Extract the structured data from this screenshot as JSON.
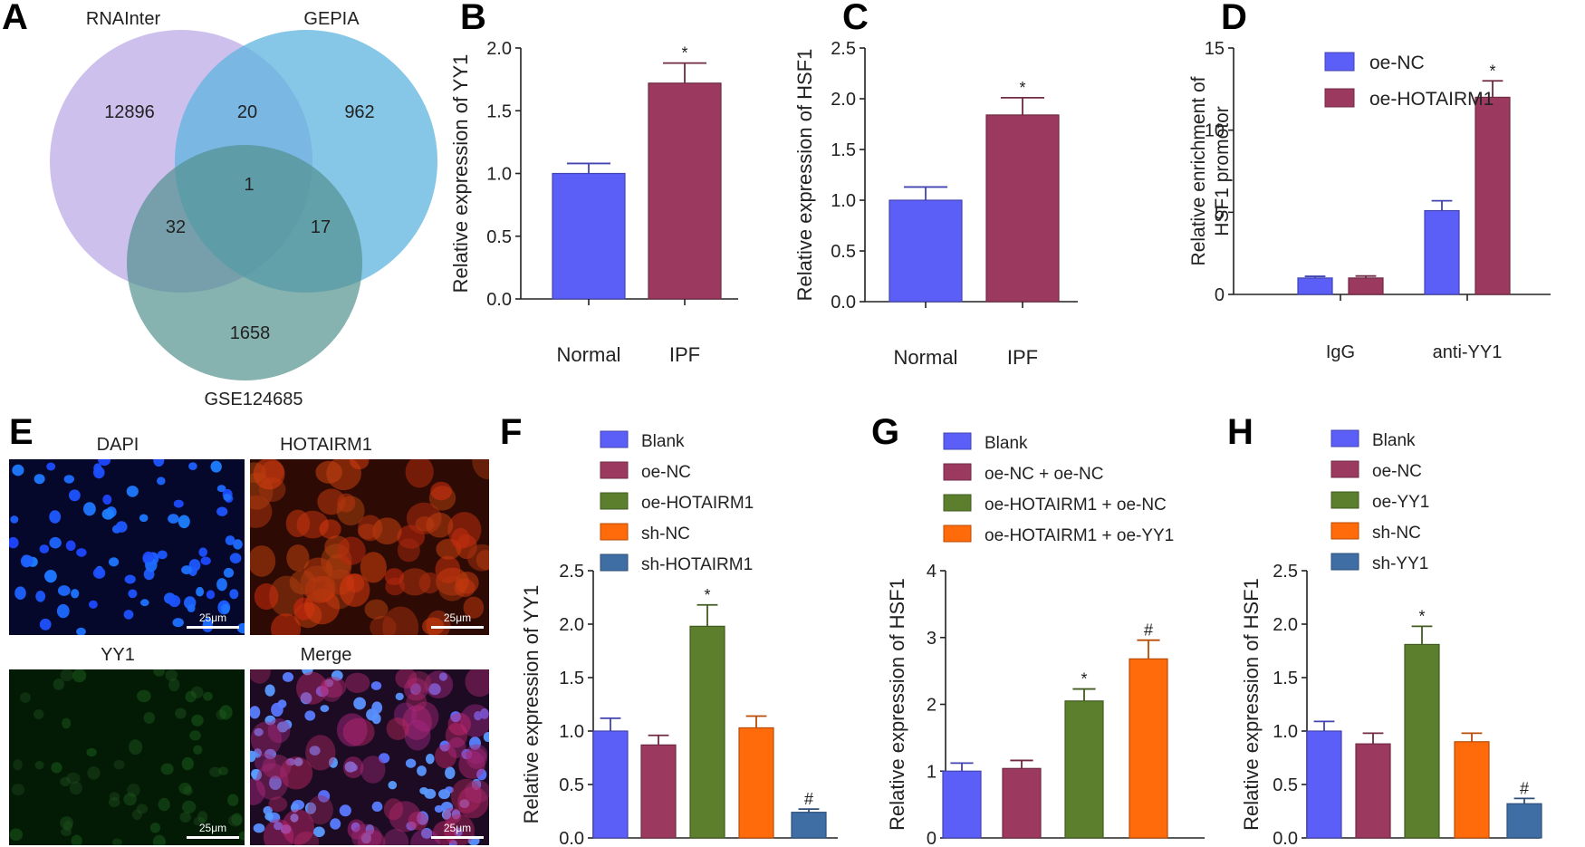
{
  "panel_letters": {
    "A": "A",
    "B": "B",
    "C": "C",
    "D": "D",
    "E": "E",
    "F": "F",
    "G": "G",
    "H": "H"
  },
  "venn": {
    "sets": [
      {
        "name": "RNAInter",
        "color": "#b9a5e6",
        "label_color": "#a48fe0"
      },
      {
        "name": "GEPIA",
        "color": "#5db4df",
        "label_color": "#3fa5d8"
      },
      {
        "name": "GSE124685",
        "color": "#52918f",
        "label_color": "#2f7a78"
      }
    ],
    "regions": {
      "rnainter_only": "12896",
      "gepia_only": "962",
      "gse_only": "1658",
      "rnainter_gepia": "20",
      "rnainter_gse": "32",
      "gepia_gse": "17",
      "all": "1"
    }
  },
  "colors": {
    "blue": "#5b5ef7",
    "maroon": "#9b3a5e",
    "green": "#5b7f2c",
    "orange": "#ff6a0a",
    "steel": "#3f6ea5"
  },
  "micrograph": {
    "titles": {
      "dapi": "DAPI",
      "hotairm1": "HOTAIRM1",
      "yy1": "YY1",
      "merge": "Merge"
    },
    "scale": "25μm"
  },
  "chart_data": [
    {
      "id": "B",
      "type": "bar",
      "ylabel": "Relative expression of YY1",
      "categories": [
        "Normal",
        "IPF"
      ],
      "values": [
        1.0,
        1.72
      ],
      "errors": [
        0.08,
        0.16
      ],
      "marks": [
        "",
        "*"
      ],
      "colors": [
        "blue",
        "maroon"
      ],
      "ylim": [
        0,
        2.0
      ],
      "ticks": [
        "0.0",
        "0.5",
        "1.0",
        "1.5",
        "2.0"
      ],
      "tick_values": [
        0,
        0.5,
        1,
        1.5,
        2
      ]
    },
    {
      "id": "C",
      "type": "bar",
      "ylabel": "Relative expression of HSF1",
      "categories": [
        "Normal",
        "IPF"
      ],
      "values": [
        1.0,
        1.84
      ],
      "errors": [
        0.13,
        0.17
      ],
      "marks": [
        "",
        "*"
      ],
      "colors": [
        "blue",
        "maroon"
      ],
      "ylim": [
        0,
        2.5
      ],
      "ticks": [
        "0.0",
        "0.5",
        "1.0",
        "1.5",
        "2.0",
        "2.5"
      ],
      "tick_values": [
        0,
        0.5,
        1,
        1.5,
        2,
        2.5
      ]
    },
    {
      "id": "D",
      "type": "bar",
      "ylabel": [
        "Relative enrichment of",
        "HSF1 promotor"
      ],
      "categories": [
        "IgG",
        "anti-YY1"
      ],
      "series": [
        {
          "name": "oe-NC",
          "color": "blue",
          "values": [
            1.0,
            5.1
          ],
          "errors": [
            0.1,
            0.6
          ],
          "marks": [
            "",
            ""
          ]
        },
        {
          "name": "oe-HOTAIRM1",
          "color": "maroon",
          "values": [
            1.0,
            12.0
          ],
          "errors": [
            0.12,
            1.0
          ],
          "marks": [
            "",
            "*"
          ]
        }
      ],
      "ylim": [
        0,
        15
      ],
      "ticks": [
        "0",
        "5",
        "10",
        "15"
      ],
      "tick_values": [
        0,
        5,
        10,
        15
      ]
    },
    {
      "id": "F",
      "type": "bar",
      "ylabel": "Relative expression of YY1",
      "legend": [
        "Blank",
        "oe-NC",
        "oe-HOTAIRM1",
        "sh-NC",
        "sh-HOTAIRM1"
      ],
      "values": [
        1.0,
        0.87,
        1.98,
        1.03,
        0.24
      ],
      "errors": [
        0.12,
        0.09,
        0.2,
        0.11,
        0.03
      ],
      "marks": [
        "",
        "",
        "*",
        "",
        "#"
      ],
      "colors": [
        "blue",
        "maroon",
        "green",
        "orange",
        "steel"
      ],
      "ylim": [
        0,
        2.5
      ],
      "ticks": [
        "0.0",
        "0.5",
        "1.0",
        "1.5",
        "2.0",
        "2.5"
      ],
      "tick_values": [
        0,
        0.5,
        1,
        1.5,
        2,
        2.5
      ]
    },
    {
      "id": "G",
      "type": "bar",
      "ylabel": "Relative expression of HSF1",
      "legend": [
        "Blank",
        "oe-NC + oe-NC",
        "oe-HOTAIRM1 + oe-NC",
        "oe-HOTAIRM1 + oe-YY1"
      ],
      "values": [
        1.0,
        1.04,
        2.05,
        2.68
      ],
      "errors": [
        0.12,
        0.12,
        0.18,
        0.28
      ],
      "marks": [
        "",
        "",
        "*",
        "#"
      ],
      "colors": [
        "blue",
        "maroon",
        "green",
        "orange"
      ],
      "ylim": [
        0,
        4
      ],
      "ticks": [
        "0",
        "1",
        "2",
        "3",
        "4"
      ],
      "tick_values": [
        0,
        1,
        2,
        3,
        4
      ]
    },
    {
      "id": "H",
      "type": "bar",
      "ylabel": "Relative expression of HSF1",
      "legend": [
        "Blank",
        "oe-NC",
        "oe-YY1",
        "sh-NC",
        "sh-YY1"
      ],
      "values": [
        1.0,
        0.88,
        1.81,
        0.9,
        0.32
      ],
      "errors": [
        0.09,
        0.1,
        0.17,
        0.08,
        0.05
      ],
      "marks": [
        "",
        "",
        "*",
        "",
        "#"
      ],
      "colors": [
        "blue",
        "maroon",
        "green",
        "orange",
        "steel"
      ],
      "ylim": [
        0,
        2.5
      ],
      "ticks": [
        "0.0",
        "0.5",
        "1.0",
        "1.5",
        "2.0",
        "2.5"
      ],
      "tick_values": [
        0,
        0.5,
        1,
        1.5,
        2,
        2.5
      ]
    }
  ]
}
